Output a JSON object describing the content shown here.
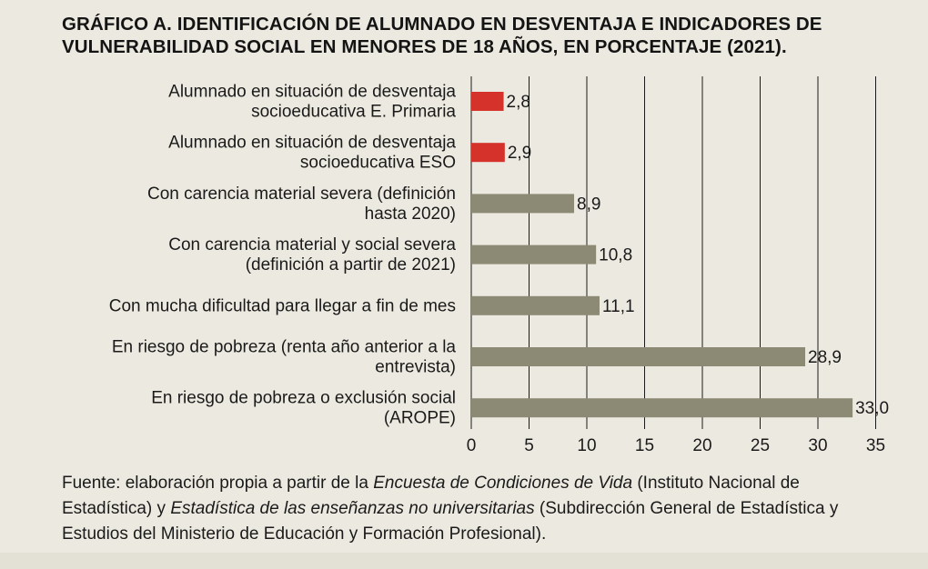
{
  "title": "GRÁFICO A. IDENTIFICACIÓN DE ALUMNADO EN DESVENTAJA E INDICADORES DE VULNERABILIDAD SOCIAL EN MENORES DE 18 AÑOS, EN PORCENTAJE (2021).",
  "source": {
    "prefix": "Fuente: elaboración propia a partir de la ",
    "italic1": "Encuesta de Condiciones de Vida",
    "mid": " (Instituto Nacional de Estadística) y ",
    "italic2": "Estadística de las enseñanzas no universitarias",
    "suffix": " (Subdirección General de Estadística y Estudios del Ministerio de Educación y Formación Profesional)."
  },
  "chart_data": {
    "type": "bar",
    "orientation": "horizontal",
    "categories": [
      [
        "Alumnado en situación de desventaja",
        "socioeducativa E. Primaria"
      ],
      [
        "Alumnado en situación de desventaja",
        "socioeducativa ESO"
      ],
      [
        "Con carencia material severa (definición",
        "hasta 2020)"
      ],
      [
        "Con carencia material y social severa",
        "(definición a partir de 2021)"
      ],
      [
        "Con mucha dificultad para llegar a fin de mes"
      ],
      [
        "En riesgo de pobreza (renta año anterior a la",
        "entrevista)"
      ],
      [
        "En riesgo de pobreza o exclusión social",
        "(AROPE)"
      ]
    ],
    "values": [
      2.8,
      2.9,
      8.9,
      10.8,
      11.1,
      28.9,
      33.0
    ],
    "value_labels": [
      "2,8",
      "2,9",
      "8,9",
      "10,8",
      "11,1",
      "28,9",
      "33,0"
    ],
    "bar_colors": [
      "#d4322b",
      "#d4322b",
      "#8c8a74",
      "#8c8a74",
      "#8c8a74",
      "#8c8a74",
      "#8c8a74"
    ],
    "xlim": [
      0,
      35
    ],
    "xticks": [
      0,
      5,
      10,
      15,
      20,
      25,
      30,
      35
    ],
    "grid": "vertical",
    "gridline_color": "#1a1a1a"
  }
}
